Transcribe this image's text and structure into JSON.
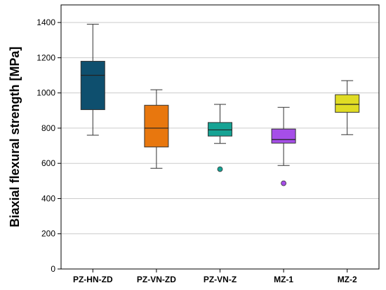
{
  "chart_data": {
    "type": "box",
    "title": "",
    "xlabel": "",
    "ylabel": "Biaxial flexural strength [MPa]",
    "ylim": [
      0,
      1500
    ],
    "yticks": [
      0,
      200,
      400,
      600,
      800,
      1000,
      1200,
      1400
    ],
    "grid": "horizontal",
    "categories": [
      "PZ-HN-ZD",
      "PZ-VN-ZD",
      "PZ-VN-Z",
      "MZ-1",
      "MZ-2"
    ],
    "boxes": [
      {
        "category": "PZ-HN-ZD",
        "min": 760,
        "q1": 905,
        "median": 1100,
        "q3": 1180,
        "max": 1390,
        "outliers": [],
        "color": "#0e4f6e"
      },
      {
        "category": "PZ-VN-ZD",
        "min": 572,
        "q1": 693,
        "median": 800,
        "q3": 930,
        "max": 1018,
        "outliers": [],
        "color": "#e8770e"
      },
      {
        "category": "PZ-VN-Z",
        "min": 713,
        "q1": 755,
        "median": 790,
        "q3": 832,
        "max": 935,
        "outliers": [
          567
        ],
        "color": "#16a394"
      },
      {
        "category": "MZ-1",
        "min": 588,
        "q1": 715,
        "median": 735,
        "q3": 795,
        "max": 918,
        "outliers": [
          487
        ],
        "color": "#a64ee8"
      },
      {
        "category": "MZ-2",
        "min": 763,
        "q1": 890,
        "median": 935,
        "q3": 990,
        "max": 1070,
        "outliers": [],
        "color": "#e0dc24"
      }
    ]
  }
}
